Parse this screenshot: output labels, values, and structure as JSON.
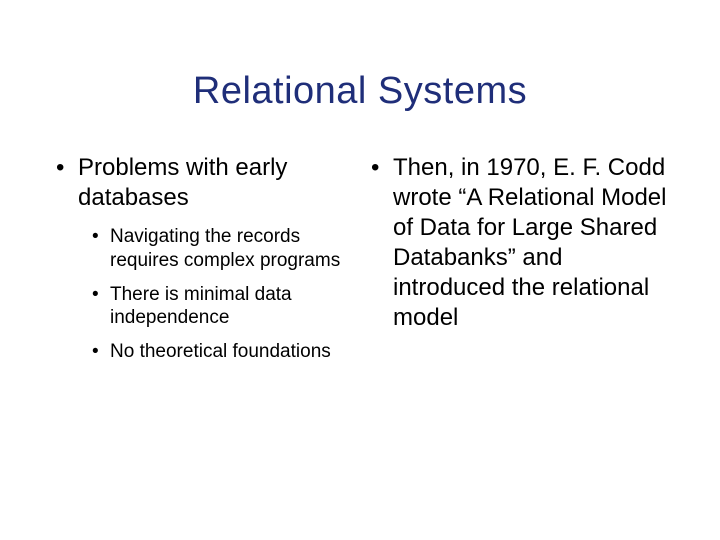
{
  "slide": {
    "title": "Relational Systems",
    "title_color": "#1f2e79",
    "text_color": "#000000",
    "background_color": "#ffffff",
    "columns": {
      "left": {
        "bullet": "Problems with early databases",
        "sub": [
          "Navigating the records requires complex programs",
          "There is minimal data independence",
          "No theoretical foundations"
        ]
      },
      "right": {
        "bullet": "Then, in 1970, E. F. Codd wrote “A Relational Model of Data for Large Shared Databanks” and introduced the relational model"
      }
    }
  }
}
